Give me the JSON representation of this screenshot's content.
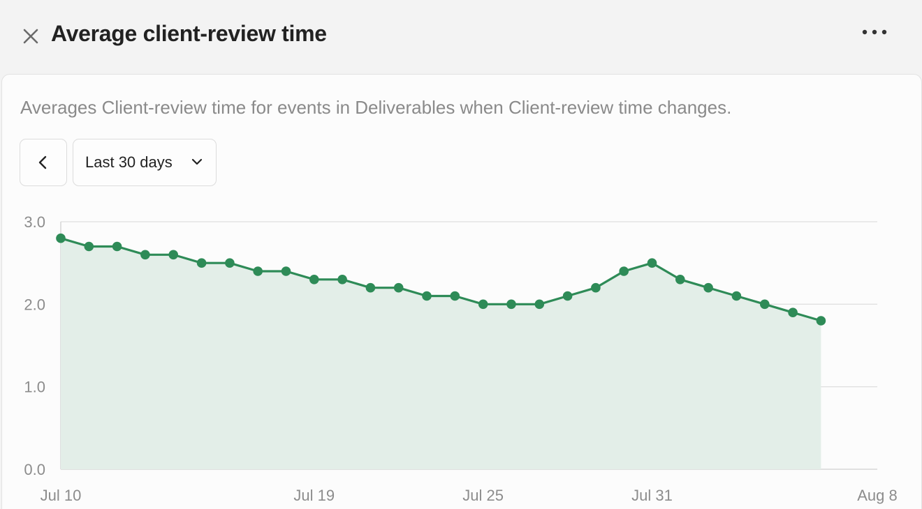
{
  "header": {
    "title": "Average client-review time",
    "close_icon": "close-icon",
    "more_icon": "more-horizontal-icon"
  },
  "panel": {
    "description": "Averages Client-review time for events in Deliverables when Client-review time changes.",
    "back_icon": "chevron-left-icon",
    "range_label": "Last 30 days",
    "range_icon": "chevron-down-icon"
  },
  "colors": {
    "line": "#2e8b57",
    "area": "#e3eee8",
    "grid": "#e0e0e0",
    "text_muted": "#8c8c8c"
  },
  "chart_data": {
    "type": "area",
    "title": "",
    "xlabel": "",
    "ylabel": "",
    "ylim": [
      0,
      3
    ],
    "xlim": [
      "2025-07-10",
      "2025-08-08"
    ],
    "y_ticks": [
      "0.0",
      "1.0",
      "2.0",
      "3.0"
    ],
    "x_ticks": [
      {
        "label": "Jul 10",
        "date": "2025-07-10"
      },
      {
        "label": "Jul 19",
        "date": "2025-07-19"
      },
      {
        "label": "Jul 25",
        "date": "2025-07-25"
      },
      {
        "label": "Jul 31",
        "date": "2025-07-31"
      },
      {
        "label": "Aug 8",
        "date": "2025-08-08"
      }
    ],
    "grid": true,
    "x": [
      "2025-07-10",
      "2025-07-11",
      "2025-07-12",
      "2025-07-13",
      "2025-07-14",
      "2025-07-15",
      "2025-07-16",
      "2025-07-17",
      "2025-07-18",
      "2025-07-19",
      "2025-07-20",
      "2025-07-21",
      "2025-07-22",
      "2025-07-23",
      "2025-07-24",
      "2025-07-25",
      "2025-07-26",
      "2025-07-27",
      "2025-07-28",
      "2025-07-29",
      "2025-07-30",
      "2025-07-31",
      "2025-08-01",
      "2025-08-02",
      "2025-08-03",
      "2025-08-04",
      "2025-08-05",
      "2025-08-06"
    ],
    "values": [
      2.8,
      2.7,
      2.7,
      2.6,
      2.6,
      2.5,
      2.5,
      2.4,
      2.4,
      2.3,
      2.3,
      2.2,
      2.2,
      2.1,
      2.1,
      2.0,
      2.0,
      2.0,
      2.1,
      2.2,
      2.4,
      2.5,
      2.3,
      2.2,
      2.1,
      2.0,
      1.9,
      1.8
    ]
  }
}
